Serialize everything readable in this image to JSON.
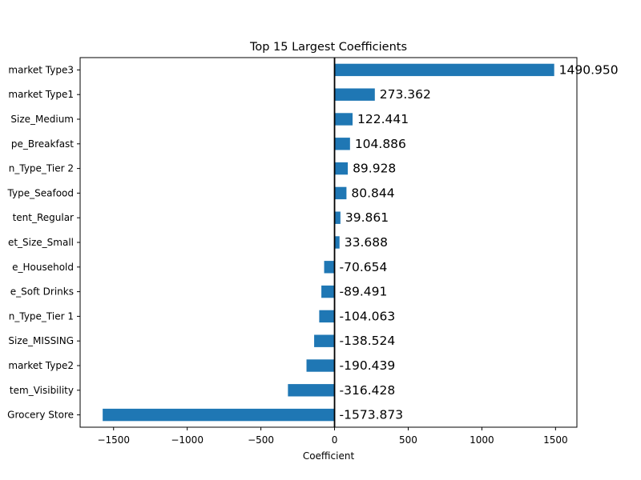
{
  "chart_data": {
    "type": "bar",
    "orientation": "horizontal",
    "title": "Top 15 Largest Coefficients",
    "xlabel": "Coefficient",
    "ylabel": "",
    "xlim": [
      -1727,
      1645
    ],
    "xticks": [
      -1500,
      -1000,
      -500,
      0,
      500,
      1000,
      1500
    ],
    "xtick_labels": [
      "−1500",
      "−1000",
      "−500",
      "0",
      "500",
      "1000",
      "1500"
    ],
    "bar_color": "#1f77b4",
    "grid": false,
    "zero_line": true,
    "categories": [
      "market Type3",
      "market Type1",
      "Size_Medium",
      "pe_Breakfast",
      "n_Type_Tier 2",
      "Type_Seafood",
      "tent_Regular",
      "et_Size_Small",
      "e_Household",
      "e_Soft Drinks",
      "n_Type_Tier 1",
      "Size_MISSING",
      "market Type2",
      "tem_Visibility",
      "Grocery Store"
    ],
    "values": [
      1490.95,
      273.362,
      122.441,
      104.886,
      89.928,
      80.844,
      39.861,
      33.688,
      -70.654,
      -89.491,
      -104.063,
      -138.524,
      -190.439,
      -316.428,
      -1573.873
    ],
    "value_labels": [
      "1490.950",
      "273.362",
      "122.441",
      "104.886",
      "89.928",
      "80.844",
      "39.861",
      "33.688",
      "-70.654",
      "-89.491",
      "-104.063",
      "-138.524",
      "-190.439",
      "-316.428",
      "-1573.873"
    ]
  }
}
